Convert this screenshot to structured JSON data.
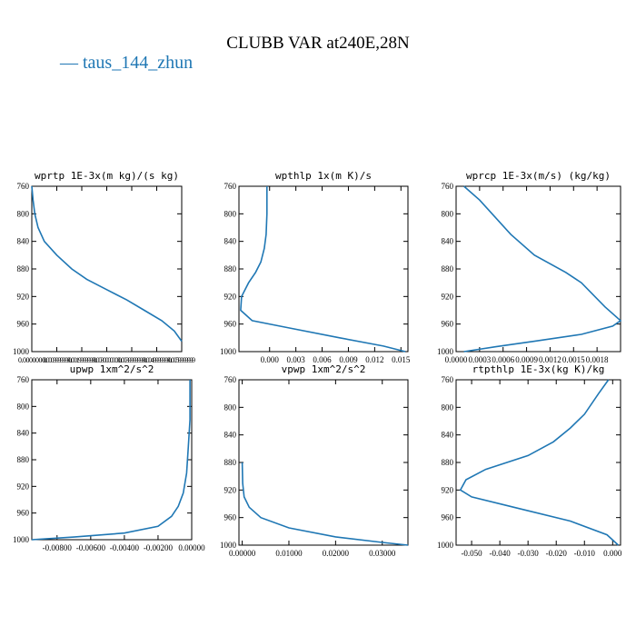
{
  "figure": {
    "title": "CLUBB VAR at240E,28N",
    "legend": [
      {
        "label": "taus_144_zhun",
        "color": "#1f77b4"
      }
    ]
  },
  "chart_data": [
    {
      "type": "line",
      "title": "wprtp  1E-3x(m kg)/(s kg)",
      "xlim": [
        0.0,
        0.006
      ],
      "ylim": [
        760,
        1000
      ],
      "yticks": [
        760,
        800,
        840,
        880,
        920,
        960,
        1000
      ],
      "xticks": [
        0,
        0.001,
        0.002,
        0.003,
        0.004,
        0.005,
        0.006
      ],
      "xtick_labels": [
        "0.0000000",
        "0.0009999999",
        "0.0019999999",
        "0.0030000000",
        "0.0039999999",
        "0.0049999999",
        "0.0059999999"
      ],
      "series": [
        {
          "name": "taus_144_zhun",
          "x": [
            0.0,
            5e-05,
            0.00012,
            0.00025,
            0.0005,
            0.001,
            0.0016,
            0.0022,
            0.003,
            0.0038,
            0.0045,
            0.0052,
            0.0057,
            0.006
          ],
          "y": [
            760,
            780,
            800,
            820,
            840,
            860,
            880,
            895,
            910,
            925,
            940,
            955,
            970,
            985
          ]
        }
      ]
    },
    {
      "type": "line",
      "title": "wpthlp  1x(m K)/s",
      "xlim": [
        -0.0035,
        0.0158
      ],
      "ylim": [
        760,
        1000
      ],
      "yticks": [
        760,
        800,
        840,
        880,
        920,
        960,
        1000
      ],
      "xticks": [
        0.0,
        0.003,
        0.006,
        0.009,
        0.012,
        0.015
      ],
      "xtick_labels": [
        "0.000",
        "0.003",
        "0.006",
        "0.009",
        "0.012",
        "0.015"
      ],
      "series": [
        {
          "name": "taus_144_zhun",
          "x": [
            -0.0003,
            -0.0003,
            -0.0004,
            -0.0006,
            -0.001,
            -0.0016,
            -0.0024,
            -0.0032,
            -0.0033,
            -0.002,
            0.002,
            0.008,
            0.013,
            0.0155
          ],
          "y": [
            760,
            800,
            830,
            850,
            870,
            885,
            900,
            920,
            940,
            955,
            965,
            980,
            992,
            1000
          ]
        }
      ]
    },
    {
      "type": "line",
      "title": "wprcp  1E-3x(m/s) (kg/kg)",
      "xlim": [
        0.0,
        0.0021
      ],
      "ylim": [
        760,
        1000
      ],
      "yticks": [
        760,
        800,
        840,
        880,
        920,
        960,
        1000
      ],
      "xticks": [
        0.0,
        0.0003,
        0.0006,
        0.0009,
        0.0012,
        0.0015,
        0.0018
      ],
      "xtick_labels": [
        "0.0000",
        "0.0003",
        "0.0006",
        "0.0009",
        "0.0012",
        "0.0015",
        "0.0018"
      ],
      "series": [
        {
          "name": "taus_144_zhun",
          "x": [
            0.0001,
            0.0003,
            0.0007,
            0.001,
            0.0014,
            0.0016,
            0.0019,
            0.0021,
            0.002,
            0.0016,
            0.001,
            0.0005,
            0.0001
          ],
          "y": [
            760,
            780,
            830,
            860,
            885,
            900,
            935,
            955,
            963,
            975,
            985,
            993,
            1000
          ]
        }
      ]
    },
    {
      "type": "line",
      "title": "upwp  1xm^2/s^2",
      "xlim": [
        -0.0095,
        0.0
      ],
      "ylim": [
        760,
        1000
      ],
      "yticks": [
        760,
        800,
        840,
        880,
        920,
        960,
        1000
      ],
      "xticks": [
        -0.008,
        -0.006,
        -0.004,
        -0.002,
        0.0
      ],
      "xtick_labels": [
        "-0.00800",
        "-0.00600",
        "-0.00400",
        "-0.00200",
        "0.00000"
      ],
      "series": [
        {
          "name": "taus_144_zhun",
          "x": [
            -0.0001,
            -0.0001,
            -0.0002,
            -0.0003,
            -0.0005,
            -0.0008,
            -0.0012,
            -0.002,
            -0.004,
            -0.007,
            -0.0095
          ],
          "y": [
            760,
            820,
            860,
            900,
            930,
            950,
            965,
            980,
            990,
            996,
            1000
          ]
        }
      ]
    },
    {
      "type": "line",
      "title": "vpwp  1xm^2/s^2",
      "xlim": [
        -0.0007,
        0.0355
      ],
      "ylim": [
        760,
        1000
      ],
      "yticks": [
        760,
        800,
        840,
        880,
        920,
        960,
        1000
      ],
      "xticks": [
        0.0,
        0.01,
        0.02,
        0.03
      ],
      "xtick_labels": [
        "0.00000",
        "0.01000",
        "0.02000",
        "0.03000"
      ],
      "series": [
        {
          "name": "taus_144_zhun",
          "x": [
            0.0,
            0.0001,
            0.0004,
            0.0015,
            0.004,
            0.01,
            0.02,
            0.03,
            0.0355
          ],
          "y": [
            880,
            910,
            930,
            945,
            960,
            975,
            988,
            996,
            1000
          ]
        }
      ]
    },
    {
      "type": "line",
      "title": "rtpthlp  1E-3x(kg K)/kg",
      "xlim": [
        -0.0555,
        0.0028
      ],
      "ylim": [
        760,
        1000
      ],
      "yticks": [
        760,
        800,
        840,
        880,
        920,
        960,
        1000
      ],
      "xticks": [
        -0.05,
        -0.04,
        -0.03,
        -0.02,
        -0.01,
        0.0
      ],
      "xtick_labels": [
        "-0.050",
        "-0.040",
        "-0.030",
        "-0.020",
        "-0.010",
        "0.000"
      ],
      "series": [
        {
          "name": "taus_144_zhun",
          "x": [
            -0.0015,
            -0.005,
            -0.01,
            -0.015,
            -0.021,
            -0.03,
            -0.045,
            -0.052,
            -0.054,
            -0.05,
            -0.035,
            -0.015,
            -0.002,
            0.002
          ],
          "y": [
            760,
            780,
            810,
            830,
            850,
            870,
            890,
            905,
            920,
            930,
            945,
            965,
            985,
            1000
          ]
        }
      ]
    }
  ]
}
